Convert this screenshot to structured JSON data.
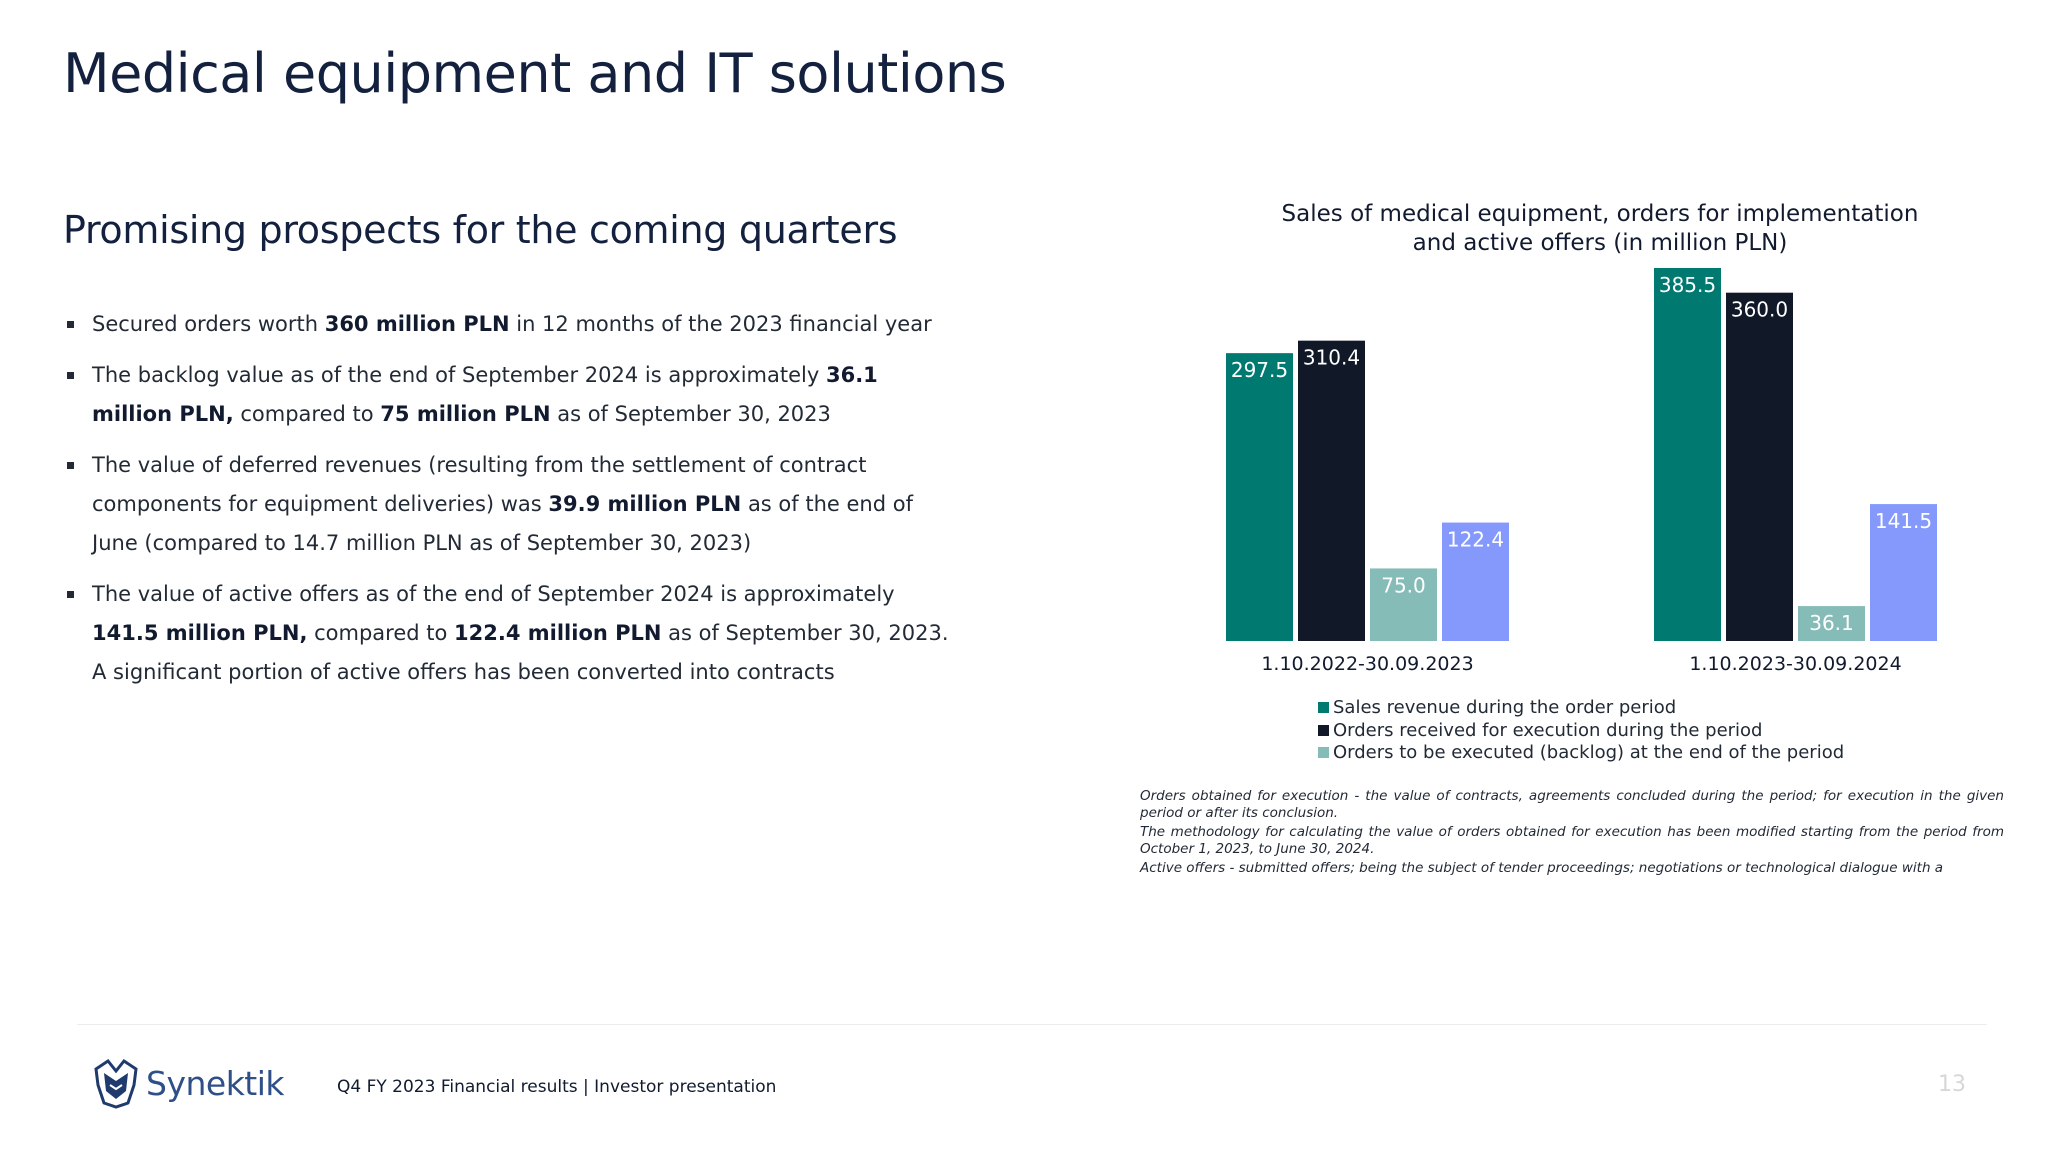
{
  "header": {
    "title": "Medical equipment and IT solutions"
  },
  "main": {
    "subtitle": "Promising prospects for the coming quarters",
    "bullets": [
      [
        {
          "t": "Secured orders worth ",
          "b": false
        },
        {
          "t": "360 million PLN",
          "b": true
        },
        {
          "t": " in 12 months of the 2023 financial year",
          "b": false
        }
      ],
      [
        {
          "t": "The backlog value as of the end of September 2024 is approximately ",
          "b": false
        },
        {
          "t": "36.1 million PLN,",
          "b": true
        },
        {
          "t": " compared to ",
          "b": false
        },
        {
          "t": "75 million PLN",
          "b": true
        },
        {
          "t": " as of September 30, 2023",
          "b": false
        }
      ],
      [
        {
          "t": "The value of deferred revenues (resulting from the settlement of contract components for equipment deliveries) was ",
          "b": false
        },
        {
          "t": "39.9 million PLN",
          "b": true
        },
        {
          "t": " as of the end of June (compared to 14.7 million PLN as of September 30, 2023)",
          "b": false
        }
      ],
      [
        {
          "t": "The value of active offers as of the end of September 2024 is approximately ",
          "b": false
        },
        {
          "t": "141.5 million PLN,",
          "b": true
        },
        {
          "t": " compared to ",
          "b": false
        },
        {
          "t": "122.4 million PLN",
          "b": true
        },
        {
          "t": " as of September 30, 2023. A significant portion of active offers has been converted into contracts",
          "b": false
        }
      ]
    ]
  },
  "chart_data": {
    "type": "bar",
    "title_line1": "Sales of medical equipment, orders for implementation",
    "title_line2": "and active offers (in million PLN)",
    "categories": [
      "1.10.2022-30.09.2023",
      "1.10.2023-30.09.2024"
    ],
    "series": [
      {
        "name": "Sales revenue during the order period",
        "color": "#007a70",
        "values": [
          297.5,
          385.5
        ]
      },
      {
        "name": "Orders received for execution during the period",
        "color": "#111827",
        "values": [
          310.4,
          360.0
        ]
      },
      {
        "name": "Orders to be executed (backlog) at the end of the period",
        "color": "#86bcb7",
        "values": [
          75.0,
          36.1
        ]
      },
      {
        "name": "",
        "color": "#8499fb",
        "values": [
          122.4,
          141.5
        ]
      }
    ],
    "value_labels": [
      [
        "297.5",
        "385.5"
      ],
      [
        "310.4",
        "360.0"
      ],
      [
        "75.0",
        "36.1"
      ],
      [
        "122.4",
        "141.5"
      ]
    ],
    "ylim": [
      0,
      385.5
    ],
    "grid": false,
    "legend_position": "bottom"
  },
  "legend": [
    {
      "label": "Sales revenue during the order period",
      "color": "#007a70"
    },
    {
      "label": "Orders received for execution during the period",
      "color": "#111827"
    },
    {
      "label": "Orders to be executed (backlog) at the end of the period",
      "color": "#86bcb7"
    }
  ],
  "notes": [
    "Orders obtained for execution - the value of contracts, agreements concluded during the period; for execution in the given period or after its conclusion.",
    "The methodology for calculating the value of orders obtained for execution has been modified starting from the period from October 1, 2023, to June 30, 2024.",
    "Active offers - submitted offers; being the subject of tender proceedings; negotiations or technological dialogue with a"
  ],
  "footer": {
    "logo_text": "Synektik",
    "text": "Q4 FY 2023 Financial results |  Investor presentation",
    "page_number": "13"
  },
  "colors": {
    "title": "#13213f",
    "logo": "#2f4f88",
    "page_number": "#d7d7d7"
  }
}
